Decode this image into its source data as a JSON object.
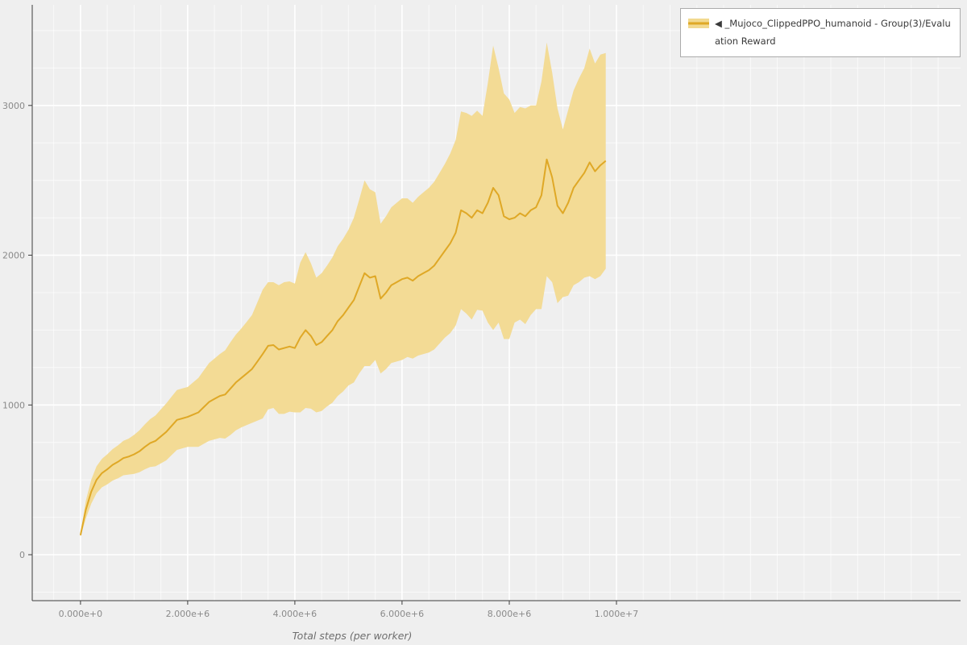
{
  "legend": {
    "collapse_icon": "◀",
    "series_label": "_Mujoco_ClippedPPO_humanoid - Group(3)/Evaluation Reward"
  },
  "axes": {
    "x_title": "Total steps (per worker)"
  },
  "colors": {
    "background": "#efefef",
    "grid": "#ffffff",
    "line": "#dfa826",
    "band": "#f2d98f",
    "axis": "#3c3c3c",
    "tick_label": "#8a8a8a",
    "legend_bg": "#ffffff",
    "legend_border": "#ababab"
  },
  "chart_data": {
    "type": "line",
    "title": "",
    "xlabel": "Total steps (per worker)",
    "ylabel": "",
    "legend_position": "top-right-outside",
    "grid": {
      "on": true,
      "x_minor_step": 500000,
      "y_minor_step": 250
    },
    "xlim": [
      -900000,
      16420000
    ],
    "ylim": [
      -307,
      3672
    ],
    "x_ticks": {
      "values": [
        0,
        2000000,
        4000000,
        6000000,
        8000000,
        10000000
      ],
      "labels": [
        "0.000e+0",
        "2.000e+6",
        "4.000e+6",
        "6.000e+6",
        "8.000e+6",
        "1.000e+7"
      ]
    },
    "y_ticks": {
      "values": [
        0,
        1000,
        2000,
        3000
      ],
      "labels": [
        "0",
        "1000",
        "2000",
        "3000"
      ]
    },
    "series": [
      {
        "name": "_Mujoco_ClippedPPO_humanoid - Group(3)/Evaluation Reward",
        "style": "mean-line-with-band"
      }
    ],
    "x": [
      0,
      100000,
      200000,
      300000,
      400000,
      500000,
      600000,
      700000,
      800000,
      900000,
      1000000,
      1100000,
      1200000,
      1300000,
      1400000,
      1500000,
      1600000,
      1700000,
      1800000,
      1900000,
      2000000,
      2100000,
      2200000,
      2300000,
      2400000,
      2500000,
      2600000,
      2700000,
      2800000,
      2900000,
      3000000,
      3100000,
      3200000,
      3300000,
      3400000,
      3500000,
      3600000,
      3700000,
      3800000,
      3900000,
      4000000,
      4100000,
      4200000,
      4300000,
      4400000,
      4500000,
      4600000,
      4700000,
      4800000,
      4900000,
      5000000,
      5100000,
      5200000,
      5300000,
      5400000,
      5500000,
      5600000,
      5700000,
      5800000,
      5900000,
      6000000,
      6100000,
      6200000,
      6300000,
      6400000,
      6500000,
      6600000,
      6700000,
      6800000,
      6900000,
      7000000,
      7100000,
      7200000,
      7300000,
      7400000,
      7500000,
      7600000,
      7700000,
      7800000,
      7900000,
      8000000,
      8100000,
      8200000,
      8300000,
      8400000,
      8500000,
      8600000,
      8700000,
      8800000,
      8900000,
      9000000,
      9100000,
      9200000,
      9300000,
      9400000,
      9500000,
      9600000,
      9700000,
      9800000
    ],
    "mean": [
      130,
      300,
      420,
      500,
      545,
      570,
      600,
      620,
      645,
      655,
      670,
      690,
      720,
      745,
      760,
      790,
      820,
      860,
      900,
      910,
      920,
      935,
      950,
      985,
      1020,
      1040,
      1060,
      1070,
      1110,
      1150,
      1180,
      1210,
      1240,
      1290,
      1340,
      1395,
      1400,
      1370,
      1380,
      1390,
      1380,
      1450,
      1500,
      1460,
      1400,
      1420,
      1460,
      1500,
      1560,
      1600,
      1650,
      1700,
      1790,
      1880,
      1850,
      1860,
      1710,
      1750,
      1800,
      1820,
      1840,
      1850,
      1830,
      1860,
      1880,
      1900,
      1930,
      1980,
      2030,
      2080,
      2150,
      2300,
      2280,
      2250,
      2300,
      2280,
      2350,
      2450,
      2400,
      2260,
      2240,
      2250,
      2280,
      2260,
      2300,
      2320,
      2400,
      2640,
      2520,
      2330,
      2280,
      2350,
      2450,
      2500,
      2550,
      2620,
      2560,
      2600,
      2630
    ],
    "band_lower": [
      120,
      240,
      340,
      410,
      450,
      470,
      495,
      510,
      530,
      535,
      540,
      550,
      570,
      585,
      590,
      610,
      630,
      665,
      700,
      710,
      720,
      720,
      720,
      740,
      760,
      770,
      780,
      775,
      800,
      830,
      850,
      865,
      880,
      895,
      910,
      970,
      980,
      940,
      940,
      955,
      950,
      950,
      980,
      975,
      950,
      960,
      990,
      1015,
      1060,
      1090,
      1130,
      1150,
      1210,
      1260,
      1260,
      1300,
      1210,
      1240,
      1280,
      1290,
      1300,
      1320,
      1310,
      1330,
      1340,
      1350,
      1370,
      1410,
      1450,
      1480,
      1530,
      1640,
      1610,
      1570,
      1635,
      1630,
      1550,
      1500,
      1550,
      1440,
      1440,
      1550,
      1570,
      1540,
      1600,
      1640,
      1640,
      1860,
      1820,
      1680,
      1720,
      1730,
      1800,
      1820,
      1850,
      1860,
      1840,
      1860,
      1910
    ],
    "band_upper": [
      140,
      360,
      500,
      590,
      640,
      670,
      705,
      730,
      760,
      775,
      800,
      830,
      870,
      905,
      930,
      970,
      1010,
      1055,
      1100,
      1110,
      1120,
      1150,
      1180,
      1230,
      1280,
      1310,
      1340,
      1365,
      1420,
      1470,
      1510,
      1555,
      1600,
      1685,
      1770,
      1820,
      1820,
      1800,
      1820,
      1825,
      1810,
      1950,
      2020,
      1945,
      1850,
      1880,
      1930,
      1985,
      2060,
      2110,
      2170,
      2250,
      2370,
      2500,
      2440,
      2420,
      2210,
      2260,
      2320,
      2350,
      2380,
      2380,
      2350,
      2390,
      2420,
      2450,
      2490,
      2550,
      2610,
      2680,
      2770,
      2960,
      2950,
      2930,
      2965,
      2930,
      3150,
      3400,
      3250,
      3080,
      3040,
      2950,
      2990,
      2980,
      3000,
      3000,
      3160,
      3420,
      3220,
      2980,
      2840,
      2970,
      3100,
      3180,
      3250,
      3380,
      3280,
      3340,
      3350
    ]
  }
}
